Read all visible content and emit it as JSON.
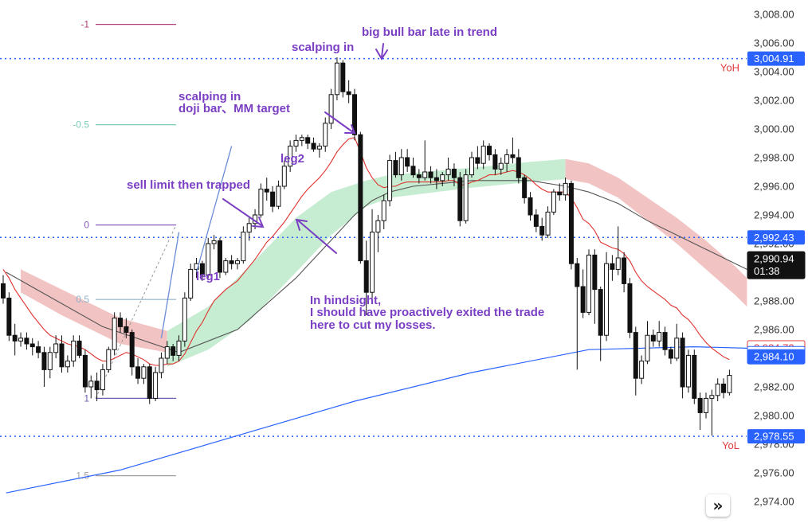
{
  "chart_data": {
    "type": "candlestick",
    "ylim": [
      2972.5,
      3009.0
    ],
    "y_ticks": [
      2974,
      2976,
      2978,
      2980,
      2982,
      2984,
      2986,
      2988,
      2990,
      2992,
      2994,
      2996,
      2998,
      3000,
      3002,
      3004,
      3006,
      3008
    ],
    "y_tick_labels": [
      "2,974.00",
      "2,976.00",
      "2,978.00",
      "2,980.00",
      "2,982.00",
      "2,984.00",
      "2,986.00",
      "2,988.00",
      "2,990.00",
      "2,992.00",
      "2,994.00",
      "2,996.00",
      "2,998.00",
      "3,000.00",
      "3,002.00",
      "3,004.00",
      "3,006.00",
      "3,008.00"
    ],
    "candles": [
      [
        2989.2,
        2989.8,
        2987.8,
        2988.2
      ],
      [
        2988.2,
        2988.6,
        2985.2,
        2985.6
      ],
      [
        2985.6,
        2986.4,
        2984.2,
        2985.2
      ],
      [
        2985.2,
        2985.8,
        2984.8,
        2985.4
      ],
      [
        2985.4,
        2985.8,
        2984.6,
        2985.0
      ],
      [
        2985.0,
        2985.4,
        2984.2,
        2984.8
      ],
      [
        2984.8,
        2985.2,
        2984.0,
        2984.4
      ],
      [
        2984.4,
        2984.8,
        2982.0,
        2983.2
      ],
      [
        2983.2,
        2984.8,
        2982.6,
        2984.4
      ],
      [
        2984.4,
        2985.6,
        2984.0,
        2985.0
      ],
      [
        2985.0,
        2985.6,
        2983.0,
        2983.4
      ],
      [
        2983.4,
        2984.2,
        2983.0,
        2983.8
      ],
      [
        2983.8,
        2985.6,
        2983.4,
        2985.2
      ],
      [
        2985.2,
        2985.6,
        2984.0,
        2984.2
      ],
      [
        2984.2,
        2984.6,
        2981.6,
        2982.0
      ],
      [
        2982.0,
        2982.8,
        2981.2,
        2982.4
      ],
      [
        2982.4,
        2983.0,
        2981.0,
        2981.8
      ],
      [
        2981.8,
        2983.6,
        2981.4,
        2983.2
      ],
      [
        2983.2,
        2984.8,
        2983.0,
        2984.6
      ],
      [
        2984.6,
        2987.2,
        2984.2,
        2986.8
      ],
      [
        2986.8,
        2987.2,
        2985.8,
        2986.2
      ],
      [
        2986.2,
        2986.8,
        2985.4,
        2985.8
      ],
      [
        2985.8,
        2986.0,
        2982.8,
        2983.4
      ],
      [
        2983.4,
        2984.0,
        2982.2,
        2982.6
      ],
      [
        2982.6,
        2983.6,
        2982.2,
        2983.4
      ],
      [
        2983.4,
        2983.6,
        2980.8,
        2981.2
      ],
      [
        2981.2,
        2983.4,
        2981.0,
        2983.0
      ],
      [
        2983.0,
        2984.4,
        2982.6,
        2984.0
      ],
      [
        2984.0,
        2985.2,
        2983.6,
        2984.8
      ],
      [
        2984.8,
        2985.0,
        2983.8,
        2984.2
      ],
      [
        2984.2,
        2985.6,
        2983.8,
        2985.2
      ],
      [
        2985.2,
        2988.6,
        2984.8,
        2988.2
      ],
      [
        2988.2,
        2990.6,
        2988.0,
        2990.2
      ],
      [
        2990.2,
        2991.0,
        2989.6,
        2990.6
      ],
      [
        2990.6,
        2990.8,
        2989.4,
        2989.8
      ],
      [
        2989.8,
        2992.4,
        2989.6,
        2992.0
      ],
      [
        2992.0,
        2992.6,
        2991.6,
        2992.2
      ],
      [
        2992.2,
        2992.4,
        2989.6,
        2990.0
      ],
      [
        2990.0,
        2991.0,
        2989.8,
        2990.8
      ],
      [
        2990.8,
        2991.2,
        2990.2,
        2990.6
      ],
      [
        2990.6,
        2991.0,
        2990.2,
        2990.8
      ],
      [
        2990.8,
        2993.2,
        2990.6,
        2992.8
      ],
      [
        2992.8,
        2993.8,
        2992.2,
        2993.4
      ],
      [
        2993.4,
        2994.4,
        2993.0,
        2994.0
      ],
      [
        2994.0,
        2996.2,
        2993.8,
        2995.8
      ],
      [
        2995.8,
        2996.6,
        2995.0,
        2995.6
      ],
      [
        2995.6,
        2996.0,
        2994.2,
        2994.6
      ],
      [
        2994.6,
        2996.4,
        2994.4,
        2996.0
      ],
      [
        2996.0,
        2997.8,
        2995.8,
        2997.4
      ],
      [
        2997.4,
        2999.2,
        2997.0,
        2998.8
      ],
      [
        2998.8,
        2999.6,
        2998.4,
        2999.2
      ],
      [
        2999.2,
        2999.6,
        2998.8,
        2999.4
      ],
      [
        2999.4,
        2999.6,
        2998.6,
        2999.0
      ],
      [
        2999.0,
        2999.4,
        2998.4,
        2998.6
      ],
      [
        2998.6,
        2999.0,
        2998.0,
        2998.8
      ],
      [
        2998.8,
        3000.8,
        2998.4,
        3000.4
      ],
      [
        3000.4,
        3002.8,
        3000.0,
        3002.4
      ],
      [
        3002.4,
        3005.0,
        3002.0,
        3004.6
      ],
      [
        3004.6,
        3004.8,
        3002.2,
        3002.6
      ],
      [
        3002.6,
        3003.4,
        3001.8,
        3002.4
      ],
      [
        3002.4,
        3002.8,
        2999.2,
        2999.6
      ],
      [
        2999.6,
        2999.8,
        2990.6,
        2990.8
      ],
      [
        2990.8,
        2992.2,
        2987.0,
        2988.6
      ],
      [
        2988.6,
        2994.4,
        2988.2,
        2992.8
      ],
      [
        2992.8,
        2994.0,
        2991.4,
        2993.6
      ],
      [
        2993.6,
        2995.4,
        2993.0,
        2995.0
      ],
      [
        2995.0,
        2998.2,
        2994.6,
        2997.8
      ],
      [
        2997.8,
        2998.4,
        2996.6,
        2996.8
      ],
      [
        2996.8,
        2998.6,
        2996.4,
        2998.0
      ],
      [
        2998.0,
        2998.6,
        2997.0,
        2997.4
      ],
      [
        2997.4,
        2998.0,
        2996.6,
        2996.8
      ],
      [
        2996.8,
        2997.2,
        2996.2,
        2996.6
      ],
      [
        2996.6,
        2999.2,
        2996.4,
        2997.0
      ],
      [
        2997.0,
        2997.4,
        2996.2,
        2996.6
      ],
      [
        2996.6,
        2997.2,
        2995.8,
        2996.4
      ],
      [
        2996.4,
        2997.0,
        2996.0,
        2996.8
      ],
      [
        2996.8,
        2998.0,
        2996.4,
        2997.2
      ],
      [
        2997.2,
        2997.6,
        2996.0,
        2996.6
      ],
      [
        2996.6,
        2997.0,
        2993.2,
        2993.6
      ],
      [
        2993.6,
        2997.2,
        2993.4,
        2996.8
      ],
      [
        2996.8,
        2998.4,
        2996.6,
        2998.0
      ],
      [
        2998.0,
        2998.8,
        2997.2,
        2997.6
      ],
      [
        2997.6,
        2999.2,
        2997.2,
        2998.8
      ],
      [
        2998.8,
        2999.0,
        2997.8,
        2998.2
      ],
      [
        2998.2,
        2998.6,
        2996.8,
        2997.2
      ],
      [
        2997.2,
        2998.0,
        2996.8,
        2997.6
      ],
      [
        2997.6,
        2998.6,
        2997.0,
        2998.2
      ],
      [
        2998.2,
        2999.4,
        2997.6,
        2998.0
      ],
      [
        2998.0,
        2998.6,
        2996.2,
        2996.6
      ],
      [
        2996.6,
        2996.8,
        2994.8,
        2995.2
      ],
      [
        2995.2,
        2995.6,
        2993.6,
        2994.0
      ],
      [
        2994.0,
        2994.4,
        2992.8,
        2993.2
      ],
      [
        2993.2,
        2993.8,
        2992.2,
        2992.6
      ],
      [
        2992.6,
        2994.6,
        2992.4,
        2994.2
      ],
      [
        2994.2,
        2995.8,
        2994.0,
        2995.6
      ],
      [
        2995.6,
        2996.2,
        2995.0,
        2995.4
      ],
      [
        2995.4,
        2996.6,
        2995.0,
        2996.2
      ],
      [
        2996.2,
        2996.4,
        2990.2,
        2990.6
      ],
      [
        2990.6,
        2991.0,
        2983.2,
        2989.0
      ],
      [
        2989.0,
        2990.2,
        2986.8,
        2987.2
      ],
      [
        2987.2,
        2991.6,
        2987.0,
        2991.2
      ],
      [
        2991.2,
        2991.6,
        2986.4,
        2988.8
      ],
      [
        2988.8,
        2989.0,
        2983.8,
        2985.6
      ],
      [
        2985.6,
        2991.4,
        2985.2,
        2990.6
      ],
      [
        2990.6,
        2991.2,
        2989.4,
        2990.2
      ],
      [
        2990.2,
        2993.2,
        2989.8,
        2991.0
      ],
      [
        2991.0,
        2991.4,
        2988.6,
        2989.2
      ],
      [
        2989.2,
        2989.6,
        2985.4,
        2985.8
      ],
      [
        2985.8,
        2986.2,
        2981.4,
        2982.6
      ],
      [
        2982.6,
        2984.2,
        2982.2,
        2983.8
      ],
      [
        2983.8,
        2986.6,
        2983.6,
        2985.6
      ],
      [
        2985.6,
        2986.0,
        2984.8,
        2985.2
      ],
      [
        2985.2,
        2986.6,
        2984.8,
        2985.8
      ],
      [
        2985.8,
        2986.2,
        2984.2,
        2984.6
      ],
      [
        2984.6,
        2984.8,
        2983.6,
        2984.0
      ],
      [
        2984.0,
        2986.4,
        2983.8,
        2985.4
      ],
      [
        2985.4,
        2985.8,
        2981.2,
        2982.0
      ],
      [
        2982.0,
        2984.6,
        2981.6,
        2984.2
      ],
      [
        2984.2,
        2984.6,
        2980.8,
        2981.2
      ],
      [
        2981.2,
        2981.6,
        2979.0,
        2980.2
      ],
      [
        2980.2,
        2981.6,
        2979.8,
        2981.2
      ],
      [
        2981.2,
        2981.8,
        2978.6,
        2981.4
      ],
      [
        2981.4,
        2982.6,
        2981.0,
        2982.2
      ],
      [
        2982.2,
        2982.6,
        2981.2,
        2981.6
      ],
      [
        2981.6,
        2983.2,
        2981.4,
        2982.8
      ]
    ],
    "ema_fast": [
      2990.2,
      2989.6,
      2988.8,
      2988.2,
      2987.6,
      2987.0,
      2986.5,
      2986.0,
      2985.6,
      2985.4,
      2985.2,
      2985.0,
      2984.9,
      2984.8,
      2984.6,
      2984.3,
      2984.0,
      2983.8,
      2983.8,
      2984.0,
      2984.2,
      2984.4,
      2984.3,
      2984.1,
      2983.9,
      2983.6,
      2983.5,
      2983.5,
      2983.6,
      2983.6,
      2983.8,
      2984.3,
      2985.1,
      2985.9,
      2986.5,
      2987.3,
      2988.0,
      2988.4,
      2988.8,
      2989.1,
      2989.4,
      2989.9,
      2990.4,
      2990.9,
      2991.5,
      2992.1,
      2992.5,
      2993.0,
      2993.5,
      2994.1,
      2994.7,
      2995.3,
      2995.8,
      2996.2,
      2996.6,
      2997.1,
      2997.7,
      2998.4,
      2998.9,
      2999.3,
      2999.4,
      2998.4,
      2997.3,
      2996.6,
      2996.1,
      2995.9,
      2996.0,
      2996.0,
      2996.2,
      2996.3,
      2996.3,
      2996.3,
      2996.3,
      2996.3,
      2996.3,
      2996.3,
      2996.4,
      2996.4,
      2996.1,
      2996.1,
      2996.3,
      2996.4,
      2996.6,
      2996.8,
      2996.8,
      2996.9,
      2997.0,
      2997.1,
      2997.0,
      2996.8,
      2996.5,
      2996.1,
      2995.8,
      2995.6,
      2995.6,
      2995.6,
      2995.6,
      2995.2,
      2994.5,
      2993.7,
      2993.4,
      2992.9,
      2992.1,
      2991.9,
      2991.7,
      2991.6,
      2991.3,
      2990.8,
      2990.0,
      2989.4,
      2989.0,
      2988.7,
      2988.4,
      2988.1,
      2987.7,
      2987.5,
      2987.0,
      2986.7,
      2986.2,
      2985.6,
      2985.1,
      2984.7,
      2984.4,
      2984.1,
      2983.9
    ],
    "ema_20": {
      "x": [
        0.5,
        17,
        30,
        40,
        50,
        55,
        60,
        63,
        66,
        70,
        80,
        90,
        96,
        100,
        105,
        110,
        115,
        120,
        125,
        127
      ],
      "y": [
        2990.0,
        2986.2,
        2984.4,
        2986.0,
        2989.6,
        2991.8,
        2994.0,
        2995.0,
        2995.6,
        2996.0,
        2996.4,
        2996.4,
        2996.0,
        2995.6,
        2994.8,
        2993.6,
        2992.6,
        2991.6,
        2990.6,
        2990.2
      ]
    },
    "ema_200": {
      "x": [
        0.5,
        20,
        40,
        60,
        80,
        100,
        118,
        127
      ],
      "y": [
        2974.6,
        2976.2,
        2978.6,
        2981.0,
        2983.0,
        2984.6,
        2984.8,
        2984.7
      ]
    },
    "band_red_1": {
      "x": [
        3,
        10,
        20,
        28
      ],
      "upper": [
        2990.2,
        2988.8,
        2986.8,
        2985.9
      ],
      "lower": [
        2988.6,
        2987.0,
        2985.0,
        2984.4
      ]
    },
    "band_green": {
      "x": [
        28,
        35,
        42,
        50,
        56,
        62,
        66,
        72,
        80,
        90,
        96
      ],
      "upper": [
        2985.9,
        2987.6,
        2990.4,
        2993.8,
        2995.6,
        2996.4,
        2996.8,
        2997.0,
        2997.3,
        2997.7,
        2997.9
      ],
      "lower": [
        2983.4,
        2984.6,
        2986.6,
        2990.0,
        2992.6,
        2994.6,
        2995.2,
        2995.5,
        2995.9,
        2996.3,
        2996.5
      ]
    },
    "band_red_2": {
      "x": [
        96,
        100,
        105,
        110,
        115,
        120,
        125,
        127
      ],
      "upper": [
        2997.9,
        2997.6,
        2996.6,
        2995.2,
        2993.8,
        2992.2,
        2990.4,
        2989.6
      ],
      "lower": [
        2996.5,
        2996.2,
        2995.2,
        2993.6,
        2992.0,
        2990.2,
        2988.4,
        2987.6
      ]
    },
    "trend_lines": [
      {
        "x": [
          27,
          30
        ],
        "y": [
          2985.4,
          2992.8
        ]
      },
      {
        "x": [
          33,
          39
        ],
        "y": [
          2990.0,
          2998.8
        ]
      }
    ],
    "fib_levels": [
      {
        "label": "-1",
        "y": 3007.3,
        "color": "#b0407a",
        "line": true
      },
      {
        "label": "-0.5",
        "y": 3000.3,
        "color": "#7fcab8",
        "line": true
      },
      {
        "label": "0",
        "y": 2993.3,
        "color": "#8a5fbf",
        "line": true
      },
      {
        "label": "0.5",
        "y": 2988.1,
        "color": "#8fb0c8",
        "line": true
      },
      {
        "label": "1",
        "y": 2981.2,
        "color": "#6a5fb0",
        "line": true
      },
      {
        "label": "1.5",
        "y": 2975.8,
        "color": "#a0a0a0",
        "line": true
      }
    ],
    "fib_diagonal": {
      "y_from": 2981.2,
      "y_to": 2993.3
    },
    "price_lines": [
      {
        "y": 3004.91,
        "label": "3,004.91",
        "color": "#2962ff",
        "note": "YoH"
      },
      {
        "y": 2992.43,
        "label": "2,992.43",
        "color": "#2962ff",
        "note": ""
      },
      {
        "y": 2978.55,
        "label": "2,978.55",
        "color": "#2962ff",
        "note": "YoL"
      }
    ],
    "price_badges": [
      {
        "y": 2990.94,
        "label": "2,990.94",
        "label2": "01:38",
        "bg": "#111111",
        "fg": "#ffffff"
      },
      {
        "y": 2984.72,
        "label": "2,984.72",
        "label2": "",
        "bg": "#ffffff",
        "fg": "#e03c3c",
        "border": "#e03c3c"
      },
      {
        "y": 2984.32,
        "label": "2,984.32",
        "label2": "",
        "bg": "#ffffff",
        "fg": "#2962ff",
        "border": "#2962ff"
      },
      {
        "y": 2984.1,
        "label": "2,984.10",
        "label2": "",
        "bg": "#2962ff",
        "fg": "#ffffff"
      }
    ],
    "annotations": [
      {
        "text": "big bull bar late in trend"
      },
      {
        "text": "scalping in"
      },
      {
        "text": "scalping in"
      },
      {
        "text": "doji bar、MM target"
      },
      {
        "text": "leg2"
      },
      {
        "text": "sell limit then trapped"
      },
      {
        "text": "leg1"
      },
      {
        "text": "In hindsight,"
      },
      {
        "text": "I should have proactively exited the trade"
      },
      {
        "text": "here to cut my losses."
      }
    ],
    "colors": {
      "bull": "#ffffff",
      "bear": "#111111",
      "wick": "#111111",
      "ema_fast": "#e0322e",
      "ema_20": "#555555",
      "ema_200": "#2962ff",
      "band_red": "#f2c3c3",
      "band_green": "#c6ecd1",
      "annotation": "#7b3fc4",
      "trend_line": "#6a8cd8"
    }
  },
  "controls": {
    "expand_label": "»"
  }
}
